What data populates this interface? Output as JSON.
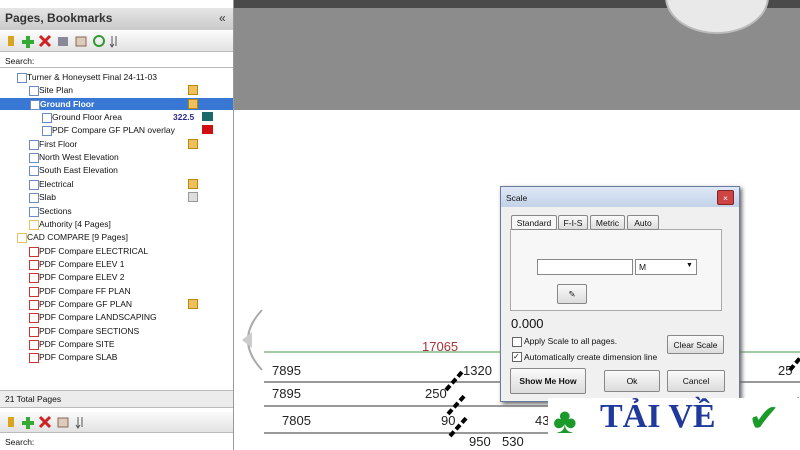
{
  "panel": {
    "title": "Pages, Bookmarks",
    "collapse": "«",
    "search_label": "Search:",
    "items": [
      {
        "label": "Turner & Honeysett Final 24-11-03"
      },
      {
        "label": "Site Plan"
      },
      {
        "label": "Ground Floor"
      },
      {
        "label": "Ground Floor Area",
        "value": "322.5"
      },
      {
        "label": "PDF Compare GF PLAN overlay"
      },
      {
        "label": "First Floor"
      },
      {
        "label": "North West Elevation"
      },
      {
        "label": "South East Elevation"
      },
      {
        "label": "Electrical"
      },
      {
        "label": "Slab"
      },
      {
        "label": "Sections"
      },
      {
        "label": "Authority [4 Pages]"
      },
      {
        "label": "CAD COMPARE [9 Pages]"
      },
      {
        "label": "PDF Compare ELECTRICAL"
      },
      {
        "label": "PDF Compare ELEV 1"
      },
      {
        "label": "PDF Compare ELEV 2"
      },
      {
        "label": "PDF Compare FF PLAN"
      },
      {
        "label": "PDF Compare GF PLAN"
      },
      {
        "label": "PDF Compare LANDSCAPING"
      },
      {
        "label": "PDF Compare SECTIONS"
      },
      {
        "label": "PDF Compare SITE"
      },
      {
        "label": "PDF Compare SLAB"
      }
    ],
    "status": "21 Total Pages"
  },
  "bottom_panel": {
    "search_label": "Search:"
  },
  "drawing": {
    "labels": [
      "17065",
      "7895",
      "1320",
      "7895",
      "250",
      "7805",
      "90",
      "43",
      "950",
      "530",
      "25"
    ]
  },
  "dialog": {
    "title": "Scale",
    "tabs": [
      "Standard",
      "F-I-S",
      "Metric",
      "Auto"
    ],
    "unit": "M",
    "scale_value": "0.000",
    "apply_all": "Apply Scale to all pages.",
    "auto_dimension": "Automatically create dimension line",
    "clear": "Clear Scale",
    "show_me": "Show Me How",
    "ok": "Ok",
    "cancel": "Cancel"
  },
  "watermark": "TẢI VỀ"
}
